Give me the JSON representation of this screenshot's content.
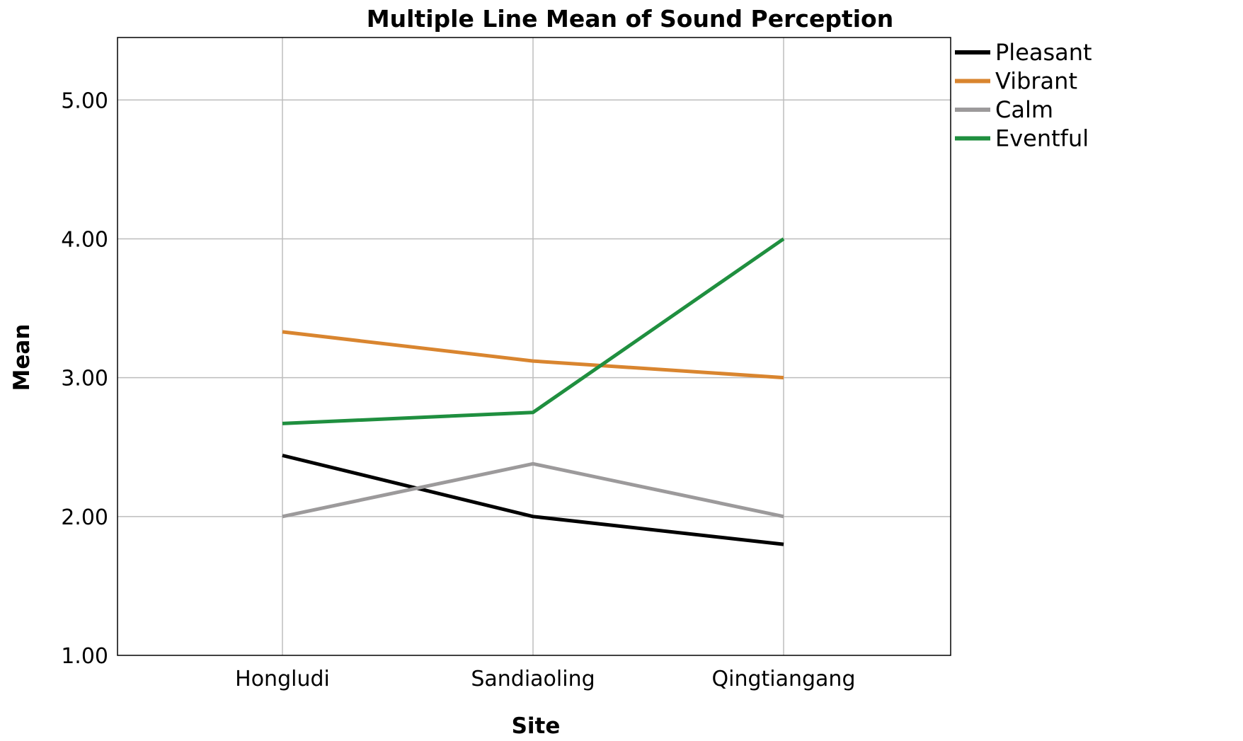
{
  "chart_data": {
    "type": "line",
    "title": "Multiple Line Mean of Sound Perception",
    "xlabel": "Site",
    "ylabel": "Mean",
    "categories": [
      "Hongludi",
      "Sandiaoling",
      "Qingtiangang"
    ],
    "ylim": [
      1.0,
      5.45
    ],
    "yticks": [
      "1.00",
      "2.00",
      "3.00",
      "4.00",
      "5.00"
    ],
    "grid": true,
    "legend_position": "top-right, outside plot",
    "series": [
      {
        "name": "Pleasant",
        "color": "#000000",
        "values": [
          2.44,
          2.0,
          1.8
        ]
      },
      {
        "name": "Vibrant",
        "color": "#d9852f",
        "values": [
          3.33,
          3.12,
          3.0
        ]
      },
      {
        "name": "Calm",
        "color": "#9c9a9b",
        "values": [
          2.0,
          2.38,
          2.0
        ]
      },
      {
        "name": "Eventful",
        "color": "#1f8f3f",
        "values": [
          2.67,
          2.75,
          4.0
        ]
      }
    ]
  }
}
